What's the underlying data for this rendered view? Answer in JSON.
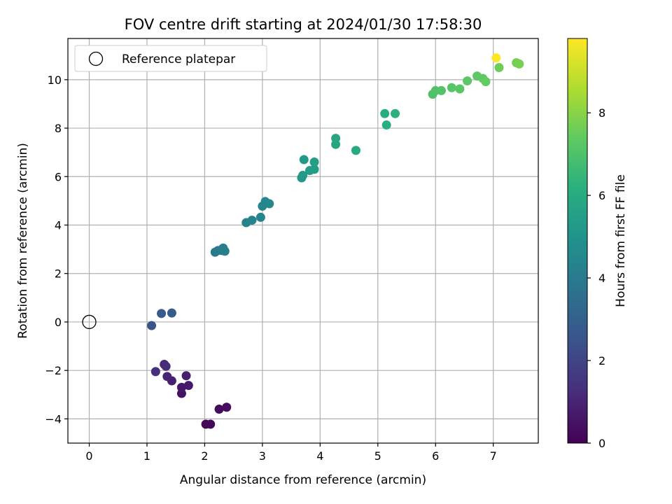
{
  "chart_data": {
    "type": "scatter",
    "title": "FOV centre drift starting at 2024/01/30 17:58:30",
    "xlabel": "Angular distance from reference (arcmin)",
    "ylabel": "Rotation from reference (arcmin)",
    "xlim": [
      -0.37,
      7.78
    ],
    "ylim": [
      -5.0,
      11.7
    ],
    "xticks": [
      0,
      1,
      2,
      3,
      4,
      5,
      6,
      7
    ],
    "yticks": [
      -4,
      -2,
      0,
      2,
      4,
      6,
      8,
      10
    ],
    "grid": true,
    "legend": {
      "position": "top-left",
      "entries": [
        "Reference platepar"
      ]
    },
    "colorbar": {
      "label": "Hours from first FF file",
      "colormap": "viridis",
      "range": [
        0,
        9.8
      ],
      "ticks": [
        0,
        2,
        4,
        6,
        8
      ]
    },
    "reference_point": {
      "x": 0,
      "y": 0,
      "label": "Reference platepar"
    },
    "points": [
      {
        "x": 2.02,
        "y": -4.22,
        "t": 0.1
      },
      {
        "x": 2.1,
        "y": -4.22,
        "t": 0.15
      },
      {
        "x": 2.25,
        "y": -3.6,
        "t": 0.25
      },
      {
        "x": 2.38,
        "y": -3.52,
        "t": 0.35
      },
      {
        "x": 1.6,
        "y": -2.95,
        "t": 0.5
      },
      {
        "x": 1.6,
        "y": -2.7,
        "t": 0.6
      },
      {
        "x": 1.72,
        "y": -2.62,
        "t": 0.7
      },
      {
        "x": 1.68,
        "y": -2.22,
        "t": 0.8
      },
      {
        "x": 1.43,
        "y": -2.43,
        "t": 0.9
      },
      {
        "x": 1.35,
        "y": -2.25,
        "t": 1.0
      },
      {
        "x": 1.3,
        "y": -1.75,
        "t": 1.1
      },
      {
        "x": 1.33,
        "y": -1.83,
        "t": 1.2
      },
      {
        "x": 1.15,
        "y": -2.05,
        "t": 1.3
      },
      {
        "x": 1.08,
        "y": -0.15,
        "t": 2.6
      },
      {
        "x": 1.25,
        "y": 0.35,
        "t": 2.7
      },
      {
        "x": 1.43,
        "y": 0.37,
        "t": 2.8
      },
      {
        "x": 2.18,
        "y": 2.88,
        "t": 4.0
      },
      {
        "x": 2.23,
        "y": 2.95,
        "t": 4.05
      },
      {
        "x": 2.3,
        "y": 2.95,
        "t": 4.1
      },
      {
        "x": 2.32,
        "y": 3.05,
        "t": 4.15
      },
      {
        "x": 2.35,
        "y": 2.92,
        "t": 4.2
      },
      {
        "x": 2.72,
        "y": 4.1,
        "t": 4.3
      },
      {
        "x": 2.82,
        "y": 4.2,
        "t": 4.35
      },
      {
        "x": 2.97,
        "y": 4.32,
        "t": 4.4
      },
      {
        "x": 3.0,
        "y": 4.78,
        "t": 4.45
      },
      {
        "x": 3.05,
        "y": 4.97,
        "t": 4.5
      },
      {
        "x": 3.12,
        "y": 4.88,
        "t": 4.55
      },
      {
        "x": 3.68,
        "y": 5.95,
        "t": 5.2
      },
      {
        "x": 3.7,
        "y": 6.05,
        "t": 5.25
      },
      {
        "x": 3.72,
        "y": 6.7,
        "t": 5.3
      },
      {
        "x": 3.82,
        "y": 6.25,
        "t": 5.35
      },
      {
        "x": 3.9,
        "y": 6.3,
        "t": 5.4
      },
      {
        "x": 3.9,
        "y": 6.6,
        "t": 5.45
      },
      {
        "x": 4.27,
        "y": 7.58,
        "t": 5.7
      },
      {
        "x": 4.27,
        "y": 7.33,
        "t": 5.75
      },
      {
        "x": 4.62,
        "y": 7.08,
        "t": 5.9
      },
      {
        "x": 5.12,
        "y": 8.6,
        "t": 6.1
      },
      {
        "x": 5.15,
        "y": 8.13,
        "t": 6.15
      },
      {
        "x": 5.3,
        "y": 8.6,
        "t": 6.2
      },
      {
        "x": 5.95,
        "y": 9.4,
        "t": 7.0
      },
      {
        "x": 6.0,
        "y": 9.55,
        "t": 7.05
      },
      {
        "x": 6.1,
        "y": 9.55,
        "t": 7.1
      },
      {
        "x": 6.28,
        "y": 9.67,
        "t": 7.15
      },
      {
        "x": 6.42,
        "y": 9.62,
        "t": 7.2
      },
      {
        "x": 6.55,
        "y": 9.95,
        "t": 7.25
      },
      {
        "x": 6.72,
        "y": 10.15,
        "t": 7.3
      },
      {
        "x": 6.82,
        "y": 10.05,
        "t": 7.35
      },
      {
        "x": 6.87,
        "y": 9.92,
        "t": 7.4
      },
      {
        "x": 7.05,
        "y": 10.9,
        "t": 9.8
      },
      {
        "x": 7.1,
        "y": 10.5,
        "t": 7.6
      },
      {
        "x": 7.4,
        "y": 10.7,
        "t": 7.7
      },
      {
        "x": 7.45,
        "y": 10.65,
        "t": 7.75
      }
    ]
  }
}
